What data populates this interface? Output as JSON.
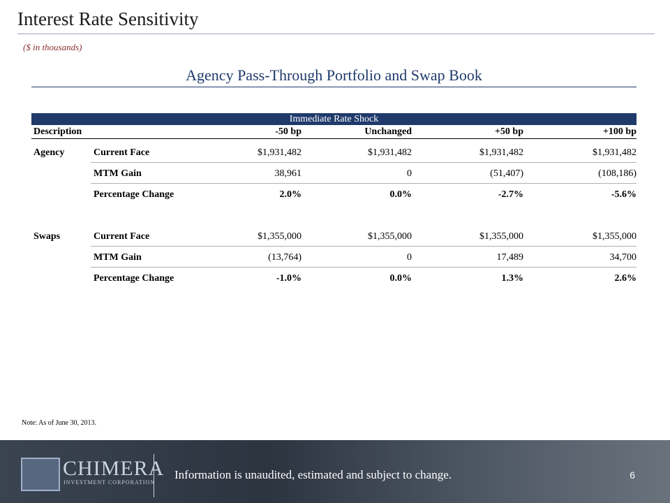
{
  "header": {
    "title": "Interest Rate Sensitivity",
    "subtitle": "($ in thousands)"
  },
  "table": {
    "title": "Agency Pass-Through Portfolio and Swap Book",
    "group_header": "Immediate Rate Shock",
    "columns": [
      "Description",
      "-50 bp",
      "Unchanged",
      "+50 bp",
      "+100 bp"
    ],
    "sections": [
      {
        "label": "Agency",
        "rows": [
          {
            "label": "Current Face",
            "cells": [
              "$1,931,482",
              "$1,931,482",
              "$1,931,482",
              "$1,931,482"
            ]
          },
          {
            "label": "MTM Gain",
            "cells": [
              "38,961",
              "0",
              "(51,407)",
              "(108,186)"
            ]
          },
          {
            "label": "Percentage Change",
            "cells": [
              "2.0%",
              "0.0%",
              "-2.7%",
              "-5.6%"
            ]
          }
        ]
      },
      {
        "label": "Swaps",
        "rows": [
          {
            "label": "Current Face",
            "cells": [
              "$1,355,000",
              "$1,355,000",
              "$1,355,000",
              "$1,355,000"
            ]
          },
          {
            "label": "MTM Gain",
            "cells": [
              "(13,764)",
              "0",
              "17,489",
              "34,700"
            ]
          },
          {
            "label": "Percentage Change",
            "cells": [
              "-1.0%",
              "0.0%",
              "1.3%",
              "2.6%"
            ]
          }
        ]
      }
    ]
  },
  "note": "Note: As of June 30, 2013.",
  "footer": {
    "company": "CHIMERA",
    "company_sub": "INVESTMENT CORPORATION",
    "disclaimer": "Information is unaudited, estimated and subject to change.",
    "page": "6"
  }
}
